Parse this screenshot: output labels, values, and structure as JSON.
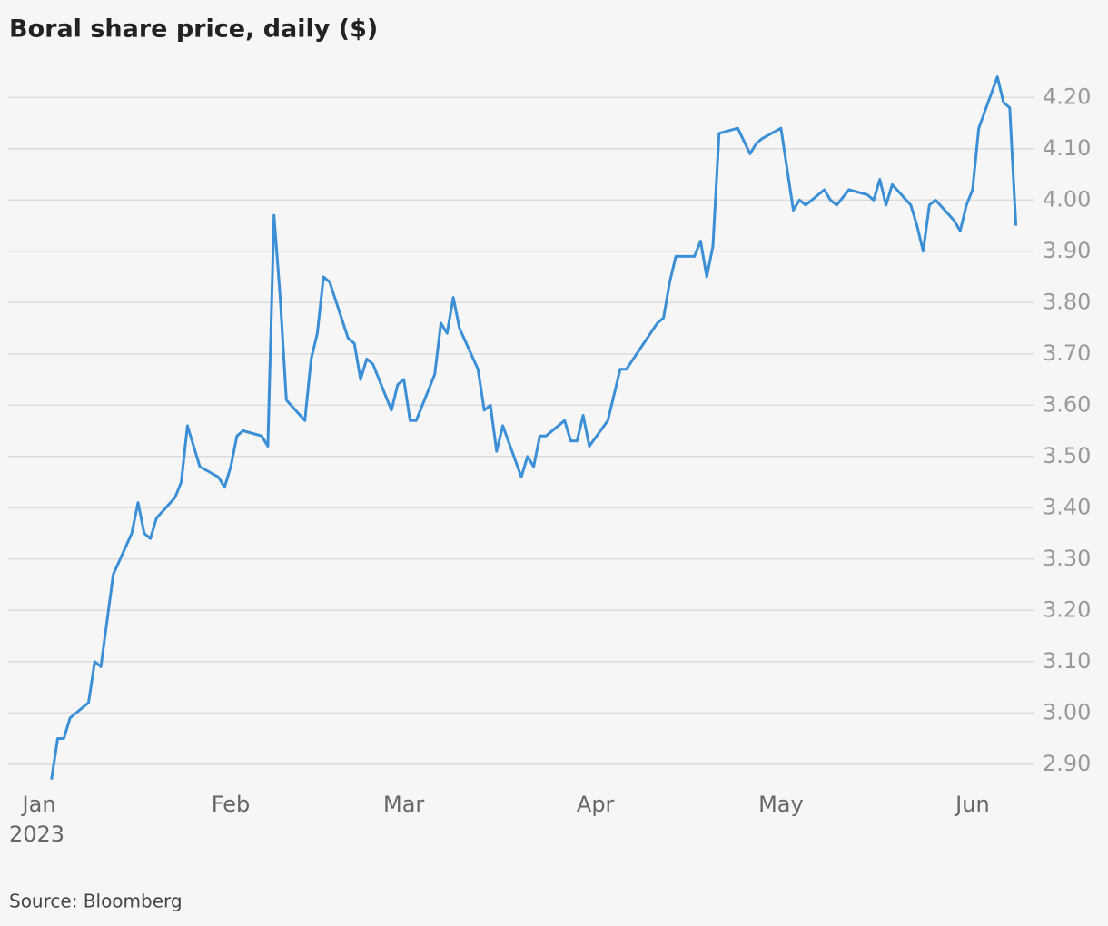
{
  "chart_data": {
    "type": "line",
    "title": "Boral share price, daily ($)",
    "source": "Source: Bloomberg",
    "x_year": "2023",
    "x": [
      2,
      3,
      4,
      5,
      8,
      9,
      10,
      12,
      15,
      16,
      17,
      18,
      19,
      22,
      23,
      24,
      26,
      29,
      30,
      31,
      32,
      33,
      36,
      37,
      38,
      39,
      40,
      43,
      44,
      45,
      46,
      47,
      50,
      51,
      52,
      53,
      54,
      57,
      58,
      59,
      60,
      61,
      64,
      65,
      66,
      67,
      68,
      71,
      72,
      73,
      74,
      75,
      78,
      79,
      80,
      81,
      82,
      85,
      86,
      87,
      88,
      89,
      92,
      94,
      95,
      100,
      101,
      102,
      103,
      106,
      107,
      108,
      109,
      110,
      113,
      115,
      116,
      117,
      120,
      122,
      123,
      124,
      127,
      128,
      129,
      131,
      134,
      135,
      136,
      137,
      138,
      141,
      142,
      143,
      144,
      145,
      148,
      149,
      150,
      151,
      152,
      155,
      156,
      157,
      158
    ],
    "values": [
      2.87,
      2.95,
      2.95,
      2.99,
      3.02,
      3.1,
      3.09,
      3.27,
      3.35,
      3.41,
      3.35,
      3.34,
      3.38,
      3.42,
      3.45,
      3.56,
      3.48,
      3.46,
      3.44,
      3.48,
      3.54,
      3.55,
      3.54,
      3.52,
      3.97,
      3.81,
      3.61,
      3.57,
      3.69,
      3.74,
      3.85,
      3.84,
      3.73,
      3.72,
      3.65,
      3.69,
      3.68,
      3.59,
      3.64,
      3.65,
      3.57,
      3.57,
      3.66,
      3.76,
      3.74,
      3.81,
      3.75,
      3.67,
      3.59,
      3.6,
      3.51,
      3.56,
      3.46,
      3.5,
      3.48,
      3.54,
      3.54,
      3.57,
      3.53,
      3.53,
      3.58,
      3.52,
      3.57,
      3.67,
      3.67,
      3.76,
      3.77,
      3.84,
      3.89,
      3.89,
      3.92,
      3.85,
      3.91,
      4.13,
      4.14,
      4.09,
      4.11,
      4.12,
      4.14,
      3.98,
      4.0,
      3.99,
      4.02,
      4.0,
      3.99,
      4.02,
      4.01,
      4.0,
      4.04,
      3.99,
      4.03,
      3.99,
      3.95,
      3.9,
      3.99,
      4.0,
      3.96,
      3.94,
      3.99,
      4.02,
      4.14,
      4.24,
      4.19,
      4.18,
      3.95
    ],
    "color": "#3a8fd6",
    "xlim": [
      -5,
      161
    ],
    "xticks": [
      {
        "value": 0,
        "label": "Jan"
      },
      {
        "value": 31,
        "label": "Feb"
      },
      {
        "value": 59,
        "label": "Mar"
      },
      {
        "value": 90,
        "label": "Apr"
      },
      {
        "value": 120,
        "label": "May"
      },
      {
        "value": 151,
        "label": "Jun"
      }
    ],
    "ylim": [
      2.85,
      4.25
    ],
    "yticks": [
      {
        "value": 2.9,
        "label": "2.90"
      },
      {
        "value": 3.0,
        "label": "3.00"
      },
      {
        "value": 3.1,
        "label": "3.10"
      },
      {
        "value": 3.2,
        "label": "3.20"
      },
      {
        "value": 3.3,
        "label": "3.30"
      },
      {
        "value": 3.4,
        "label": "3.40"
      },
      {
        "value": 3.5,
        "label": "3.50"
      },
      {
        "value": 3.6,
        "label": "3.60"
      },
      {
        "value": 3.7,
        "label": "3.70"
      },
      {
        "value": 3.8,
        "label": "3.80"
      },
      {
        "value": 3.9,
        "label": "3.90"
      },
      {
        "value": 4.0,
        "label": "4.00"
      },
      {
        "value": 4.1,
        "label": "4.10"
      },
      {
        "value": 4.2,
        "label": "4.20"
      }
    ],
    "grid": true
  }
}
